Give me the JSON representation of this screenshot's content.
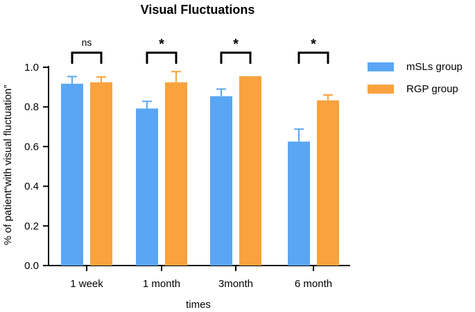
{
  "chart_data": {
    "type": "bar",
    "title": "Visual Fluctuations",
    "xlabel": "times",
    "ylabel": "% of patient“with visual fluctuation”",
    "ylim": [
      0,
      1.0
    ],
    "yticks": [
      "0.0",
      "0.2",
      "0.4",
      "0.6",
      "0.8",
      "1.0"
    ],
    "ytick_values": [
      0,
      0.2,
      0.4,
      0.6,
      0.8,
      1.0
    ],
    "categories": [
      "1 week",
      "1 month",
      "3month",
      "6 month"
    ],
    "series": [
      {
        "name": "mSLs group",
        "color": "#5aa6f5",
        "values": [
          0.917,
          0.792,
          0.854,
          0.625
        ],
        "errors": [
          0.036,
          0.036,
          0.036,
          0.063
        ]
      },
      {
        "name": "RGP group",
        "color": "#f9a23e",
        "values": [
          0.924,
          0.924,
          0.955,
          0.833
        ],
        "errors": [
          0.027,
          0.054,
          0.0,
          0.027
        ]
      }
    ],
    "significance": [
      "ns",
      "*",
      "*",
      "*"
    ],
    "legend_position": "right"
  }
}
